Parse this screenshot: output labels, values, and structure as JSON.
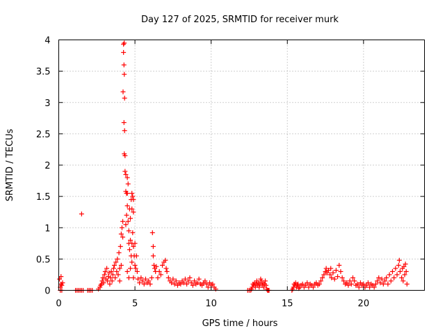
{
  "chart_data": {
    "type": "scatter",
    "title": "Day 127 of 2025, SRMTID for receiver murk",
    "xlabel": "GPS time / hours",
    "ylabel": "SRMTID / TECUs",
    "xlim": [
      0,
      24
    ],
    "ylim": [
      0,
      4
    ],
    "x_ticks": [
      0,
      5,
      10,
      15,
      20
    ],
    "x_tick_labels": [
      "0",
      "5",
      "10",
      "15",
      "20"
    ],
    "y_ticks": [
      0,
      0.5,
      1,
      1.5,
      2,
      2.5,
      3,
      3.5,
      4
    ],
    "y_tick_labels": [
      "0",
      "0.5",
      "1",
      "1.5",
      "2",
      "2.5",
      "3",
      "3.5",
      "4"
    ],
    "grid": true,
    "marker": "+",
    "color": "#ff0000",
    "series": [
      {
        "name": "SRMTID",
        "points": [
          [
            0.05,
            0.18
          ],
          [
            0.1,
            0.05
          ],
          [
            0.1,
            0.0
          ],
          [
            0.15,
            0.22
          ],
          [
            0.15,
            0.1
          ],
          [
            0.2,
            0.0
          ],
          [
            0.2,
            0.08
          ],
          [
            0.25,
            0.12
          ],
          [
            1.1,
            0.0
          ],
          [
            1.2,
            0.0
          ],
          [
            1.3,
            0.0
          ],
          [
            1.4,
            0.0
          ],
          [
            1.5,
            0.0
          ],
          [
            1.5,
            1.22
          ],
          [
            1.6,
            0.0
          ],
          [
            1.9,
            0.0
          ],
          [
            2.0,
            0.0
          ],
          [
            2.1,
            0.0
          ],
          [
            2.2,
            0.0
          ],
          [
            2.6,
            0.02
          ],
          [
            2.7,
            0.05
          ],
          [
            2.75,
            0.08
          ],
          [
            2.8,
            0.1
          ],
          [
            2.85,
            0.15
          ],
          [
            2.9,
            0.2
          ],
          [
            2.95,
            0.12
          ],
          [
            3.0,
            0.25
          ],
          [
            3.05,
            0.3
          ],
          [
            3.1,
            0.18
          ],
          [
            3.15,
            0.35
          ],
          [
            3.2,
            0.15
          ],
          [
            3.25,
            0.22
          ],
          [
            3.3,
            0.28
          ],
          [
            3.35,
            0.1
          ],
          [
            3.4,
            0.2
          ],
          [
            3.45,
            0.3
          ],
          [
            3.5,
            0.15
          ],
          [
            3.55,
            0.25
          ],
          [
            3.6,
            0.35
          ],
          [
            3.65,
            0.4
          ],
          [
            3.7,
            0.2
          ],
          [
            3.75,
            0.45
          ],
          [
            3.8,
            0.3
          ],
          [
            3.85,
            0.5
          ],
          [
            3.9,
            0.25
          ],
          [
            3.95,
            0.6
          ],
          [
            4.0,
            0.35
          ],
          [
            4.0,
            0.15
          ],
          [
            4.05,
            0.7
          ],
          [
            4.1,
            0.4
          ],
          [
            4.1,
            0.9
          ],
          [
            4.15,
            1.0
          ],
          [
            4.2,
            0.85
          ],
          [
            4.2,
            1.1
          ],
          [
            4.22,
            3.17
          ],
          [
            4.25,
            3.8
          ],
          [
            4.25,
            3.93
          ],
          [
            4.28,
            3.6
          ],
          [
            4.3,
            3.95
          ],
          [
            4.3,
            3.45
          ],
          [
            4.32,
            3.07
          ],
          [
            4.28,
            2.68
          ],
          [
            4.32,
            2.55
          ],
          [
            4.3,
            2.18
          ],
          [
            4.35,
            2.15
          ],
          [
            4.35,
            1.9
          ],
          [
            4.4,
            1.85
          ],
          [
            4.4,
            1.58
          ],
          [
            4.45,
            1.55
          ],
          [
            4.5,
            1.8
          ],
          [
            4.5,
            1.55
          ],
          [
            4.55,
            1.7
          ],
          [
            4.5,
            1.35
          ],
          [
            4.45,
            1.2
          ],
          [
            4.4,
            1.05
          ],
          [
            4.55,
            1.1
          ],
          [
            4.6,
            0.95
          ],
          [
            4.65,
            1.3
          ],
          [
            4.7,
            1.15
          ],
          [
            4.75,
            1.45
          ],
          [
            4.8,
            1.55
          ],
          [
            4.8,
            1.3
          ],
          [
            4.85,
            1.5
          ],
          [
            4.9,
            1.45
          ],
          [
            4.9,
            1.25
          ],
          [
            4.6,
            0.75
          ],
          [
            4.65,
            0.65
          ],
          [
            4.7,
            0.8
          ],
          [
            4.75,
            0.55
          ],
          [
            4.8,
            0.75
          ],
          [
            4.85,
            0.92
          ],
          [
            4.9,
            0.7
          ],
          [
            4.95,
            0.55
          ],
          [
            5.0,
            0.75
          ],
          [
            5.0,
            0.4
          ],
          [
            4.5,
            0.3
          ],
          [
            4.6,
            0.2
          ],
          [
            4.7,
            0.35
          ],
          [
            4.8,
            0.45
          ],
          [
            4.9,
            0.2
          ],
          [
            5.05,
            0.35
          ],
          [
            5.1,
            0.55
          ],
          [
            5.15,
            0.3
          ],
          [
            5.2,
            0.18
          ],
          [
            5.3,
            0.12
          ],
          [
            5.4,
            0.2
          ],
          [
            5.5,
            0.15
          ],
          [
            5.6,
            0.1
          ],
          [
            5.7,
            0.18
          ],
          [
            5.8,
            0.12
          ],
          [
            5.9,
            0.15
          ],
          [
            6.0,
            0.1
          ],
          [
            6.1,
            0.2
          ],
          [
            6.15,
            0.92
          ],
          [
            6.2,
            0.7
          ],
          [
            6.2,
            0.55
          ],
          [
            6.25,
            0.4
          ],
          [
            6.3,
            0.35
          ],
          [
            6.35,
            0.3
          ],
          [
            6.4,
            0.38
          ],
          [
            6.5,
            0.2
          ],
          [
            6.6,
            0.3
          ],
          [
            6.7,
            0.25
          ],
          [
            6.8,
            0.4
          ],
          [
            6.9,
            0.45
          ],
          [
            7.0,
            0.48
          ],
          [
            7.05,
            0.35
          ],
          [
            7.1,
            0.3
          ],
          [
            7.2,
            0.2
          ],
          [
            7.3,
            0.15
          ],
          [
            7.4,
            0.12
          ],
          [
            7.5,
            0.18
          ],
          [
            7.6,
            0.1
          ],
          [
            7.7,
            0.15
          ],
          [
            7.8,
            0.08
          ],
          [
            7.9,
            0.12
          ],
          [
            8.0,
            0.1
          ],
          [
            8.1,
            0.15
          ],
          [
            8.2,
            0.12
          ],
          [
            8.3,
            0.18
          ],
          [
            8.4,
            0.1
          ],
          [
            8.5,
            0.15
          ],
          [
            8.6,
            0.2
          ],
          [
            8.7,
            0.12
          ],
          [
            8.8,
            0.08
          ],
          [
            8.9,
            0.15
          ],
          [
            9.0,
            0.1
          ],
          [
            9.1,
            0.12
          ],
          [
            9.2,
            0.18
          ],
          [
            9.3,
            0.1
          ],
          [
            9.4,
            0.08
          ],
          [
            9.5,
            0.12
          ],
          [
            9.6,
            0.15
          ],
          [
            9.7,
            0.1
          ],
          [
            9.8,
            0.05
          ],
          [
            9.9,
            0.12
          ],
          [
            10.0,
            0.08
          ],
          [
            10.1,
            0.1
          ],
          [
            10.2,
            0.05
          ],
          [
            10.3,
            0.02
          ],
          [
            12.4,
            0.0
          ],
          [
            12.5,
            0.0
          ],
          [
            12.6,
            0.0
          ],
          [
            12.65,
            0.02
          ],
          [
            12.7,
            0.05
          ],
          [
            12.75,
            0.1
          ],
          [
            12.8,
            0.08
          ],
          [
            12.85,
            0.12
          ],
          [
            12.9,
            0.05
          ],
          [
            12.95,
            0.1
          ],
          [
            13.0,
            0.15
          ],
          [
            13.05,
            0.08
          ],
          [
            13.1,
            0.12
          ],
          [
            13.15,
            0.05
          ],
          [
            13.2,
            0.1
          ],
          [
            13.25,
            0.18
          ],
          [
            13.3,
            0.15
          ],
          [
            13.35,
            0.08
          ],
          [
            13.4,
            0.12
          ],
          [
            13.45,
            0.05
          ],
          [
            13.5,
            0.1
          ],
          [
            13.55,
            0.15
          ],
          [
            13.6,
            0.08
          ],
          [
            13.65,
            0.02
          ],
          [
            13.7,
            0.0
          ],
          [
            13.75,
            0.0
          ],
          [
            13.8,
            0.0
          ],
          [
            15.3,
            0.0
          ],
          [
            15.35,
            0.02
          ],
          [
            15.4,
            0.05
          ],
          [
            15.45,
            0.1
          ],
          [
            15.5,
            0.08
          ],
          [
            15.55,
            0.12
          ],
          [
            15.6,
            0.05
          ],
          [
            15.65,
            0.08
          ],
          [
            15.7,
            0.1
          ],
          [
            15.75,
            0.03
          ],
          [
            15.8,
            0.05
          ],
          [
            15.9,
            0.08
          ],
          [
            16.0,
            0.1
          ],
          [
            16.1,
            0.05
          ],
          [
            16.2,
            0.08
          ],
          [
            16.3,
            0.12
          ],
          [
            16.4,
            0.05
          ],
          [
            16.5,
            0.1
          ],
          [
            16.6,
            0.08
          ],
          [
            16.7,
            0.05
          ],
          [
            16.8,
            0.1
          ],
          [
            16.9,
            0.12
          ],
          [
            17.0,
            0.08
          ],
          [
            17.1,
            0.1
          ],
          [
            17.2,
            0.15
          ],
          [
            17.3,
            0.2
          ],
          [
            17.4,
            0.25
          ],
          [
            17.5,
            0.3
          ],
          [
            17.55,
            0.35
          ],
          [
            17.6,
            0.28
          ],
          [
            17.7,
            0.32
          ],
          [
            17.8,
            0.25
          ],
          [
            17.85,
            0.35
          ],
          [
            17.9,
            0.2
          ],
          [
            18.0,
            0.28
          ],
          [
            18.1,
            0.18
          ],
          [
            18.2,
            0.32
          ],
          [
            18.3,
            0.22
          ],
          [
            18.4,
            0.4
          ],
          [
            18.5,
            0.3
          ],
          [
            18.6,
            0.2
          ],
          [
            18.7,
            0.15
          ],
          [
            18.8,
            0.1
          ],
          [
            18.9,
            0.12
          ],
          [
            19.0,
            0.08
          ],
          [
            19.1,
            0.15
          ],
          [
            19.2,
            0.1
          ],
          [
            19.3,
            0.2
          ],
          [
            19.4,
            0.15
          ],
          [
            19.5,
            0.08
          ],
          [
            19.6,
            0.1
          ],
          [
            19.7,
            0.05
          ],
          [
            19.8,
            0.12
          ],
          [
            19.9,
            0.08
          ],
          [
            20.0,
            0.1
          ],
          [
            20.1,
            0.05
          ],
          [
            20.2,
            0.08
          ],
          [
            20.3,
            0.12
          ],
          [
            20.4,
            0.05
          ],
          [
            20.5,
            0.1
          ],
          [
            20.6,
            0.08
          ],
          [
            20.7,
            0.05
          ],
          [
            20.8,
            0.1
          ],
          [
            20.9,
            0.15
          ],
          [
            21.0,
            0.2
          ],
          [
            21.1,
            0.12
          ],
          [
            21.2,
            0.18
          ],
          [
            21.3,
            0.1
          ],
          [
            21.4,
            0.15
          ],
          [
            21.5,
            0.2
          ],
          [
            21.6,
            0.1
          ],
          [
            21.7,
            0.25
          ],
          [
            21.8,
            0.15
          ],
          [
            21.9,
            0.3
          ],
          [
            22.0,
            0.2
          ],
          [
            22.1,
            0.35
          ],
          [
            22.2,
            0.25
          ],
          [
            22.3,
            0.4
          ],
          [
            22.35,
            0.48
          ],
          [
            22.4,
            0.3
          ],
          [
            22.5,
            0.2
          ],
          [
            22.55,
            0.35
          ],
          [
            22.6,
            0.15
          ],
          [
            22.65,
            0.38
          ],
          [
            22.7,
            0.25
          ],
          [
            22.75,
            0.42
          ],
          [
            22.8,
            0.3
          ],
          [
            22.85,
            0.1
          ]
        ]
      }
    ]
  }
}
